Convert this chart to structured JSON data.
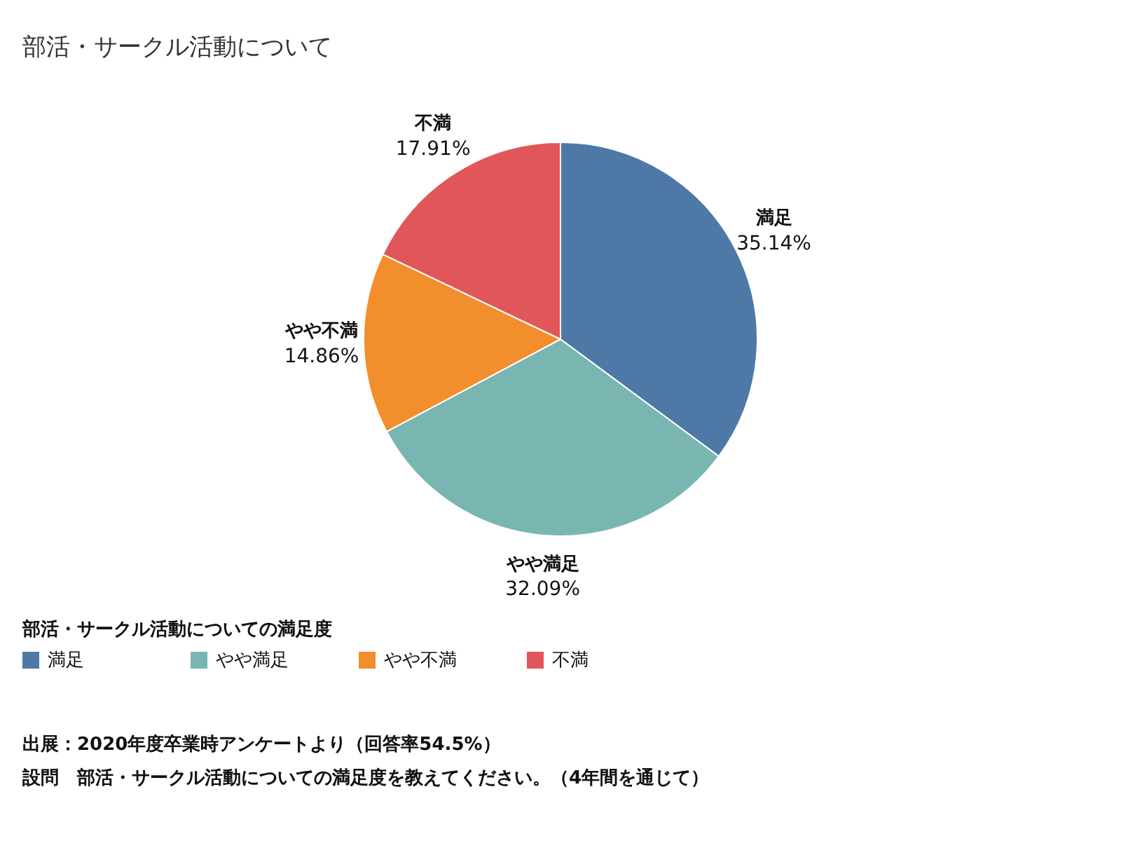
{
  "chart_data": {
    "type": "pie",
    "title": "部活・サークル活動について",
    "legend_title": "部活・サークル活動についての満足度",
    "legend": "bottom left",
    "categories": [
      "満足",
      "やや満足",
      "やや不満",
      "不満"
    ],
    "values": [
      35.14,
      32.09,
      14.86,
      17.91
    ],
    "value_labels": [
      "35.14%",
      "32.09%",
      "14.86%",
      "17.91%"
    ],
    "colors": [
      "#4e79a7",
      "#79b6b1",
      "#f28e2b",
      "#e15759"
    ],
    "annotations": [
      "出展：2020年度卒業時アンケートより（回答率54.5%）",
      "設問　部活・サークル活動についての満足度を教えてください。（4年間を通じて）"
    ]
  }
}
